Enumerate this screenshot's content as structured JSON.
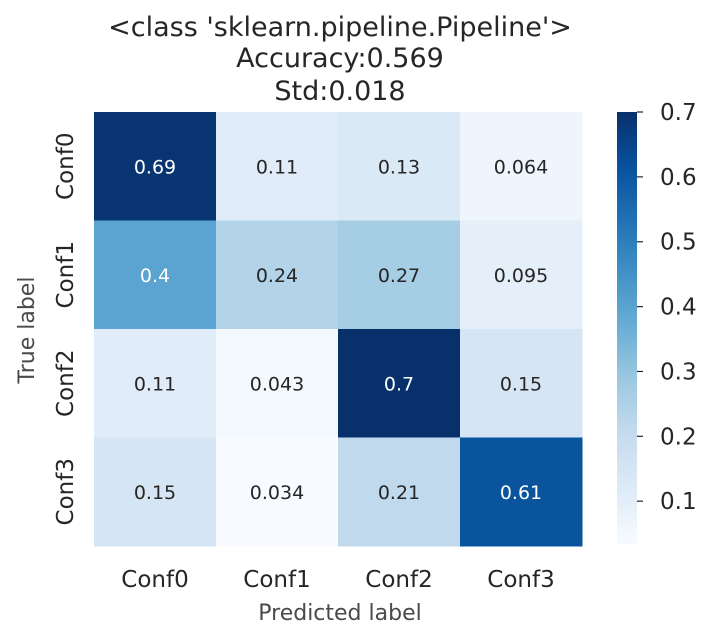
{
  "chart_data": {
    "type": "heatmap",
    "title": [
      "<class 'sklearn.pipeline.Pipeline'>",
      "Accuracy:0.569",
      "Std:0.018"
    ],
    "xlabel": "Predicted label",
    "ylabel": "True label",
    "x_categories": [
      "Conf0",
      "Conf1",
      "Conf2",
      "Conf3"
    ],
    "y_categories": [
      "Conf0",
      "Conf1",
      "Conf2",
      "Conf3"
    ],
    "values": [
      [
        0.69,
        0.11,
        0.13,
        0.064
      ],
      [
        0.4,
        0.24,
        0.27,
        0.095
      ],
      [
        0.11,
        0.043,
        0.7,
        0.15
      ],
      [
        0.15,
        0.034,
        0.21,
        0.61
      ]
    ],
    "annotations": [
      [
        "0.69",
        "0.11",
        "0.13",
        "0.064"
      ],
      [
        "0.4",
        "0.24",
        "0.27",
        "0.095"
      ],
      [
        "0.11",
        "0.043",
        "0.7",
        "0.15"
      ],
      [
        "0.15",
        "0.034",
        "0.21",
        "0.61"
      ]
    ],
    "colormap": "Blues",
    "colorbar": {
      "range": [
        0.034,
        0.7
      ],
      "ticks": [
        0.1,
        0.2,
        0.3,
        0.4,
        0.5,
        0.6,
        0.7
      ],
      "tick_labels": [
        "0.1",
        "0.2",
        "0.3",
        "0.4",
        "0.5",
        "0.6",
        "0.7"
      ]
    },
    "grid": false,
    "legend": "colorbar-right"
  }
}
